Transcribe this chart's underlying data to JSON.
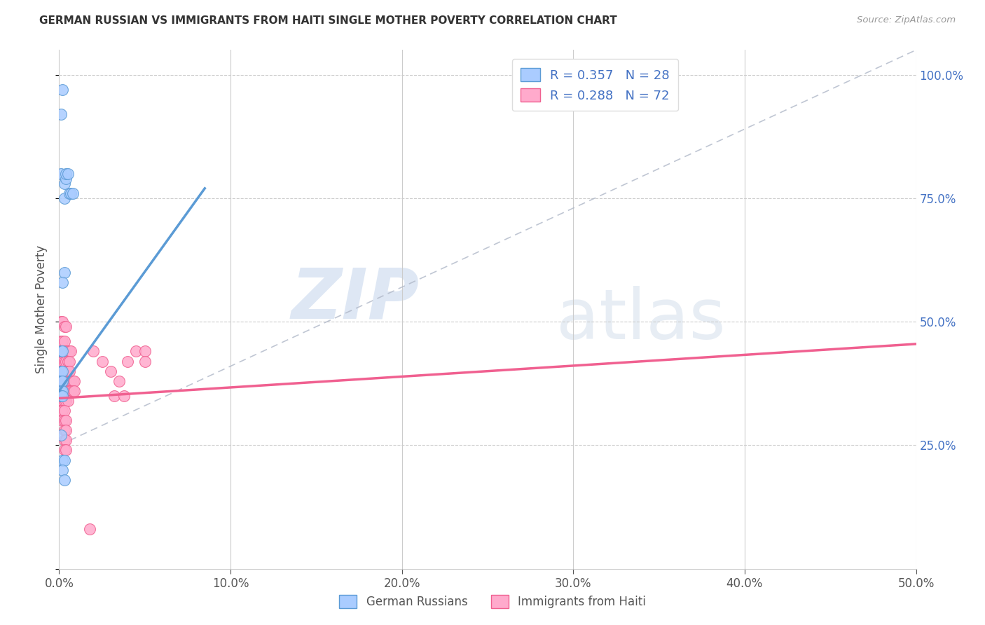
{
  "title": "GERMAN RUSSIAN VS IMMIGRANTS FROM HAITI SINGLE MOTHER POVERTY CORRELATION CHART",
  "source": "Source: ZipAtlas.com",
  "ylabel_label": "Single Mother Poverty",
  "xlim": [
    0.0,
    0.5
  ],
  "ylim": [
    0.0,
    1.05
  ],
  "blue_scatter": [
    [
      0.001,
      0.92
    ],
    [
      0.002,
      0.97
    ],
    [
      0.001,
      0.8
    ],
    [
      0.003,
      0.78
    ],
    [
      0.004,
      0.79
    ],
    [
      0.004,
      0.8
    ],
    [
      0.005,
      0.8
    ],
    [
      0.003,
      0.75
    ],
    [
      0.006,
      0.76
    ],
    [
      0.007,
      0.76
    ],
    [
      0.008,
      0.76
    ],
    [
      0.003,
      0.6
    ],
    [
      0.002,
      0.58
    ],
    [
      0.001,
      0.44
    ],
    [
      0.002,
      0.44
    ],
    [
      0.001,
      0.4
    ],
    [
      0.002,
      0.4
    ],
    [
      0.001,
      0.38
    ],
    [
      0.002,
      0.38
    ],
    [
      0.001,
      0.36
    ],
    [
      0.002,
      0.36
    ],
    [
      0.001,
      0.35
    ],
    [
      0.002,
      0.35
    ],
    [
      0.001,
      0.27
    ],
    [
      0.002,
      0.22
    ],
    [
      0.003,
      0.22
    ],
    [
      0.002,
      0.2
    ],
    [
      0.003,
      0.18
    ]
  ],
  "pink_scatter": [
    [
      0.001,
      0.5
    ],
    [
      0.002,
      0.5
    ],
    [
      0.003,
      0.49
    ],
    [
      0.004,
      0.49
    ],
    [
      0.001,
      0.46
    ],
    [
      0.002,
      0.46
    ],
    [
      0.003,
      0.46
    ],
    [
      0.001,
      0.44
    ],
    [
      0.002,
      0.44
    ],
    [
      0.003,
      0.44
    ],
    [
      0.004,
      0.44
    ],
    [
      0.005,
      0.44
    ],
    [
      0.006,
      0.44
    ],
    [
      0.007,
      0.44
    ],
    [
      0.001,
      0.42
    ],
    [
      0.002,
      0.42
    ],
    [
      0.003,
      0.42
    ],
    [
      0.004,
      0.42
    ],
    [
      0.005,
      0.42
    ],
    [
      0.006,
      0.42
    ],
    [
      0.001,
      0.4
    ],
    [
      0.002,
      0.4
    ],
    [
      0.003,
      0.4
    ],
    [
      0.004,
      0.4
    ],
    [
      0.005,
      0.4
    ],
    [
      0.006,
      0.4
    ],
    [
      0.001,
      0.38
    ],
    [
      0.002,
      0.38
    ],
    [
      0.003,
      0.38
    ],
    [
      0.004,
      0.38
    ],
    [
      0.005,
      0.38
    ],
    [
      0.006,
      0.38
    ],
    [
      0.007,
      0.38
    ],
    [
      0.008,
      0.38
    ],
    [
      0.009,
      0.38
    ],
    [
      0.001,
      0.36
    ],
    [
      0.002,
      0.36
    ],
    [
      0.003,
      0.36
    ],
    [
      0.004,
      0.36
    ],
    [
      0.005,
      0.36
    ],
    [
      0.006,
      0.36
    ],
    [
      0.007,
      0.36
    ],
    [
      0.008,
      0.36
    ],
    [
      0.009,
      0.36
    ],
    [
      0.001,
      0.34
    ],
    [
      0.002,
      0.34
    ],
    [
      0.003,
      0.34
    ],
    [
      0.004,
      0.34
    ],
    [
      0.005,
      0.34
    ],
    [
      0.001,
      0.32
    ],
    [
      0.002,
      0.32
    ],
    [
      0.003,
      0.32
    ],
    [
      0.002,
      0.3
    ],
    [
      0.003,
      0.3
    ],
    [
      0.004,
      0.3
    ],
    [
      0.003,
      0.28
    ],
    [
      0.004,
      0.28
    ],
    [
      0.003,
      0.26
    ],
    [
      0.004,
      0.26
    ],
    [
      0.003,
      0.24
    ],
    [
      0.004,
      0.24
    ],
    [
      0.02,
      0.44
    ],
    [
      0.025,
      0.42
    ],
    [
      0.03,
      0.4
    ],
    [
      0.035,
      0.38
    ],
    [
      0.04,
      0.42
    ],
    [
      0.045,
      0.44
    ],
    [
      0.05,
      0.44
    ],
    [
      0.05,
      0.42
    ],
    [
      0.032,
      0.35
    ],
    [
      0.038,
      0.35
    ],
    [
      0.018,
      0.08
    ]
  ],
  "blue_line_x": [
    0.0,
    0.085
  ],
  "blue_line_y": [
    0.36,
    0.77
  ],
  "pink_line_x": [
    0.0,
    0.5
  ],
  "pink_line_y": [
    0.345,
    0.455
  ],
  "diag_line_x": [
    0.0,
    0.5
  ],
  "diag_line_y": [
    0.25,
    1.05
  ],
  "blue_color": "#5b9bd5",
  "pink_color": "#f06090",
  "blue_scatter_color": "#aaccff",
  "pink_scatter_color": "#ffaacc",
  "R_blue": 0.357,
  "N_blue": 28,
  "R_pink": 0.288,
  "N_pink": 72,
  "watermark_zip": "ZIP",
  "watermark_atlas": "atlas",
  "background_color": "#ffffff",
  "grid_color": "#cccccc",
  "right_tick_color": "#4472c4",
  "title_color": "#333333",
  "source_color": "#999999"
}
